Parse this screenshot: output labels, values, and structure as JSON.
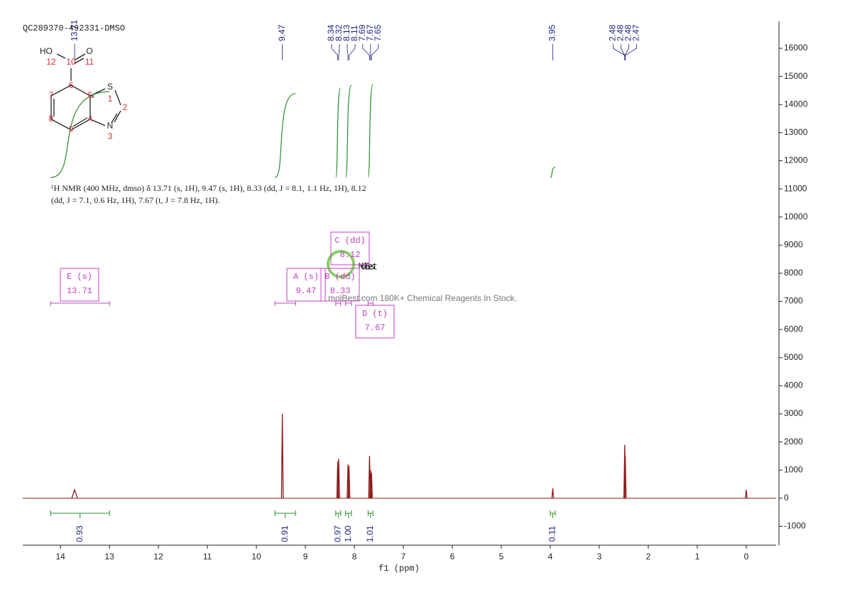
{
  "chart_data": {
    "type": "nmr",
    "title": "QC289370-492331-DMSO",
    "description": [
      "¹H NMR (400 MHz, dmso) δ 13.71 (s, 1H), 9.47 (s, 1H), 8.33 (dd, J = 8.1, 1.1 Hz, 1H), 8.12",
      "(dd, J = 7.1, 0.6 Hz, 1H), 7.67 (t, J = 7.8 Hz, 1H)."
    ],
    "x_label": "f1 (ppm)",
    "xlim": [
      14.77,
      -0.61
    ],
    "xticks": [
      14,
      13,
      12,
      11,
      10,
      9,
      8,
      7,
      6,
      5,
      4,
      3,
      2,
      1,
      0
    ],
    "ylim": [
      -1670,
      16960
    ],
    "yticks": [
      -1000,
      0,
      1000,
      2000,
      3000,
      4000,
      5000,
      6000,
      7000,
      8000,
      9000,
      10000,
      11000,
      12000,
      13000,
      14000,
      15000,
      16000
    ],
    "color": "#8b1a1a",
    "x": [
      13.71,
      9.47,
      8.34,
      8.32,
      8.13,
      8.11,
      7.69,
      7.67,
      7.65,
      3.95,
      2.48,
      2.47,
      0
    ],
    "values": [
      300,
      3000,
      1300,
      1400,
      1200,
      1150,
      1500,
      1000,
      900,
      350,
      1900,
      1500,
      300
    ],
    "peak_labels": [
      13.71,
      9.47,
      8.34,
      8.32,
      8.13,
      8.11,
      7.69,
      7.67,
      7.65,
      3.95,
      2.48,
      2.48,
      2.48,
      2.47
    ],
    "integrals": {
      "ranges": [
        [
          14.2,
          13.0
        ],
        [
          9.62,
          9.2
        ],
        [
          8.38,
          8.28
        ],
        [
          8.18,
          8.06
        ],
        [
          7.72,
          7.62
        ],
        [
          4.0,
          3.9
        ]
      ],
      "values": [
        0.93,
        0.91,
        0.97,
        1,
        1.01,
        0.11
      ],
      "value_labels": [
        "0.93",
        "0.91",
        "0.97",
        "1.00",
        "1.01",
        "0.11"
      ]
    },
    "multiplets": [
      {
        "name": "E (s)",
        "shift": 13.71,
        "range": [
          14.2,
          13.0
        ]
      },
      {
        "name": "A (s)",
        "shift": 9.47,
        "range": [
          9.62,
          9.2
        ]
      },
      {
        "name": "B (dd)",
        "shift": 8.33,
        "range": [
          8.38,
          8.28
        ]
      },
      {
        "name": "C (dd)",
        "shift": 8.12,
        "range": [
          8.18,
          8.06
        ]
      },
      {
        "name": "D (t)",
        "shift": 7.67,
        "range": [
          7.72,
          7.62
        ]
      }
    ]
  },
  "molecule": {
    "atoms": [
      "HO",
      "O",
      "S",
      "N"
    ],
    "numbers": [
      "12",
      "10",
      "11",
      "6",
      "7",
      "5",
      "1",
      "2",
      "8",
      "9",
      "4",
      "3"
    ]
  },
  "watermark": {
    "logo": "MolBest",
    "tagline": "molBest.com 180K+ Chemical Reagents In Stock."
  }
}
